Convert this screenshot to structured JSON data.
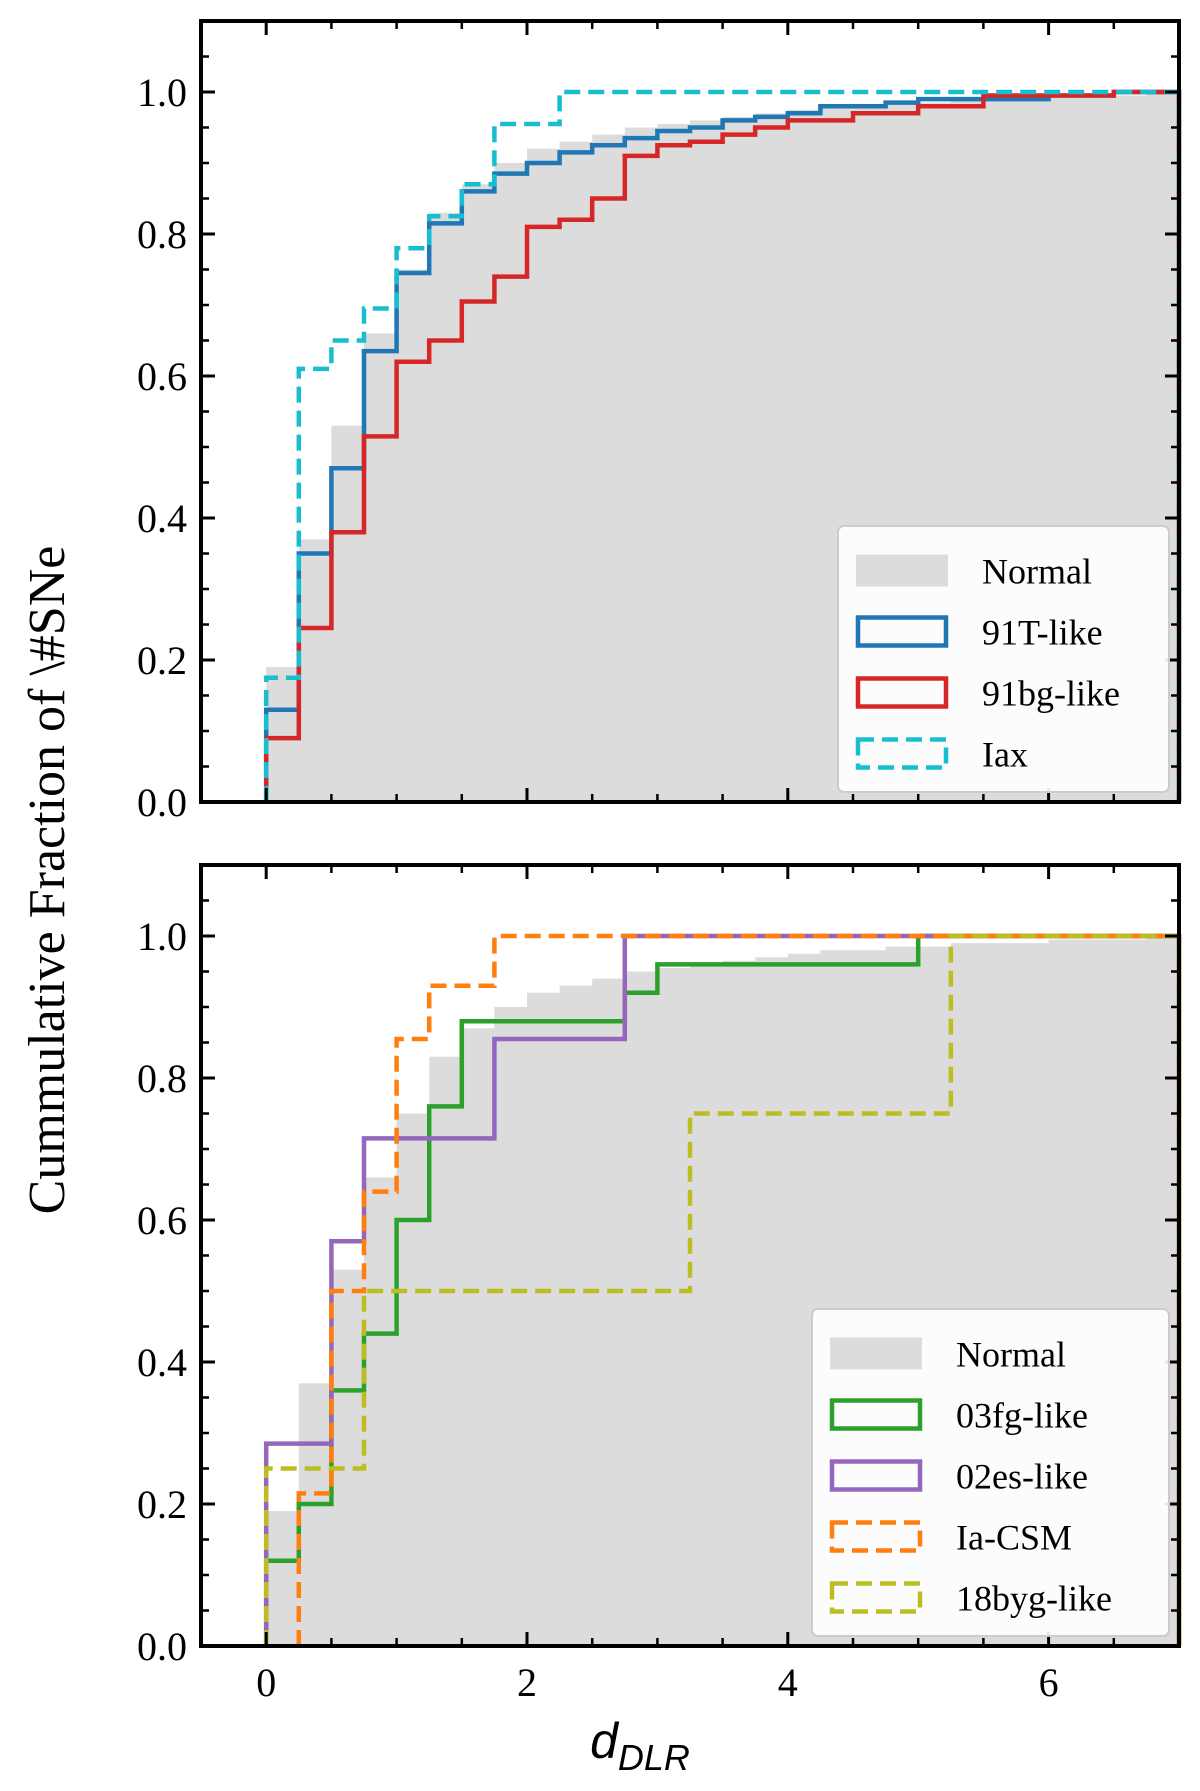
{
  "chart_data": [
    {
      "type": "histogram-step-cumulative",
      "panel": "top",
      "xlim": [
        -0.5,
        7
      ],
      "ylim": [
        0,
        1.1
      ],
      "xticks": [
        0,
        2,
        4,
        6
      ],
      "yticks": [
        0.0,
        0.2,
        0.4,
        0.6,
        0.8,
        1.0
      ],
      "ytick_labels": [
        "0.0",
        "0.2",
        "0.4",
        "0.6",
        "0.8",
        "1.0"
      ],
      "bin_edges": [
        0,
        0.25,
        0.5,
        0.75,
        1.0,
        1.25,
        1.5,
        1.75,
        2.0,
        2.25,
        2.5,
        2.75,
        3.0,
        3.25,
        3.5,
        3.75,
        4.0,
        4.25,
        4.5,
        4.75,
        5.0,
        5.25,
        5.5,
        5.75,
        6.0,
        6.25,
        6.5,
        6.75,
        7.0
      ],
      "normal": {
        "name": "Normal",
        "color": "#dcdcdc",
        "values": [
          0.19,
          0.37,
          0.53,
          0.66,
          0.75,
          0.83,
          0.87,
          0.9,
          0.92,
          0.93,
          0.94,
          0.95,
          0.955,
          0.96,
          0.965,
          0.97,
          0.975,
          0.98,
          0.98,
          0.985,
          0.985,
          0.99,
          0.99,
          0.99,
          0.995,
          0.995,
          0.995,
          1.0
        ]
      },
      "series": [
        {
          "name": "91T-like",
          "color": "#1f77b4",
          "dashed": false,
          "steps": [
            [
              0,
              0.13
            ],
            [
              0.25,
              0.35
            ],
            [
              0.5,
              0.47
            ],
            [
              0.75,
              0.635
            ],
            [
              1.0,
              0.745
            ],
            [
              1.25,
              0.815
            ],
            [
              1.5,
              0.86
            ],
            [
              1.75,
              0.885
            ],
            [
              2.0,
              0.9
            ],
            [
              2.25,
              0.915
            ],
            [
              2.5,
              0.925
            ],
            [
              2.75,
              0.935
            ],
            [
              3.0,
              0.945
            ],
            [
              3.25,
              0.95
            ],
            [
              3.5,
              0.96
            ],
            [
              3.75,
              0.965
            ],
            [
              4.0,
              0.97
            ],
            [
              4.25,
              0.98
            ],
            [
              4.75,
              0.985
            ],
            [
              5.0,
              0.99
            ],
            [
              6.0,
              0.995
            ],
            [
              6.5,
              1.0
            ]
          ]
        },
        {
          "name": "91bg-like",
          "color": "#d62728",
          "dashed": false,
          "steps": [
            [
              0,
              0.09
            ],
            [
              0.25,
              0.245
            ],
            [
              0.5,
              0.38
            ],
            [
              0.75,
              0.515
            ],
            [
              1.0,
              0.62
            ],
            [
              1.25,
              0.65
            ],
            [
              1.5,
              0.705
            ],
            [
              1.75,
              0.74
            ],
            [
              2.0,
              0.81
            ],
            [
              2.25,
              0.82
            ],
            [
              2.5,
              0.85
            ],
            [
              2.75,
              0.91
            ],
            [
              3.0,
              0.925
            ],
            [
              3.25,
              0.93
            ],
            [
              3.5,
              0.94
            ],
            [
              3.75,
              0.95
            ],
            [
              4.0,
              0.96
            ],
            [
              4.5,
              0.97
            ],
            [
              5.0,
              0.98
            ],
            [
              5.5,
              0.995
            ],
            [
              6.5,
              1.0
            ]
          ]
        },
        {
          "name": "Iax",
          "color": "#17becf",
          "dashed": true,
          "steps": [
            [
              0,
              0.175
            ],
            [
              0.25,
              0.61
            ],
            [
              0.5,
              0.65
            ],
            [
              0.75,
              0.695
            ],
            [
              1.0,
              0.78
            ],
            [
              1.25,
              0.825
            ],
            [
              1.5,
              0.87
            ],
            [
              1.75,
              0.955
            ],
            [
              2.25,
              1.0
            ]
          ]
        }
      ],
      "legend": {
        "position": "lower-right",
        "entries": [
          "Normal",
          "91T-like",
          "91bg-like",
          "Iax"
        ]
      }
    },
    {
      "type": "histogram-step-cumulative",
      "panel": "bottom",
      "xlim": [
        -0.5,
        7
      ],
      "ylim": [
        0,
        1.1
      ],
      "xticks": [
        0,
        2,
        4,
        6
      ],
      "xtick_labels": [
        "0",
        "2",
        "4",
        "6"
      ],
      "yticks": [
        0.0,
        0.2,
        0.4,
        0.6,
        0.8,
        1.0
      ],
      "ytick_labels": [
        "0.0",
        "0.2",
        "0.4",
        "0.6",
        "0.8",
        "1.0"
      ],
      "normal": {
        "name": "Normal",
        "color": "#dcdcdc",
        "values": [
          0.19,
          0.37,
          0.53,
          0.66,
          0.75,
          0.83,
          0.87,
          0.9,
          0.92,
          0.93,
          0.94,
          0.95,
          0.955,
          0.96,
          0.965,
          0.97,
          0.975,
          0.98,
          0.98,
          0.985,
          0.985,
          0.99,
          0.99,
          0.99,
          0.995,
          0.995,
          0.995,
          1.0
        ]
      },
      "series": [
        {
          "name": "03fg-like",
          "color": "#2ca02c",
          "dashed": false,
          "steps": [
            [
              0,
              0.12
            ],
            [
              0.25,
              0.2
            ],
            [
              0.5,
              0.36
            ],
            [
              0.75,
              0.44
            ],
            [
              1.0,
              0.6
            ],
            [
              1.25,
              0.76
            ],
            [
              1.5,
              0.88
            ],
            [
              2.75,
              0.92
            ],
            [
              3.0,
              0.96
            ],
            [
              5.0,
              1.0
            ]
          ]
        },
        {
          "name": "02es-like",
          "color": "#9467bd",
          "dashed": false,
          "steps": [
            [
              0,
              0.285
            ],
            [
              0.5,
              0.57
            ],
            [
              0.75,
              0.715
            ],
            [
              1.75,
              0.855
            ],
            [
              2.75,
              1.0
            ]
          ]
        },
        {
          "name": "Ia-CSM",
          "color": "#ff7f0e",
          "dashed": true,
          "steps": [
            [
              0.25,
              0.215
            ],
            [
              0.5,
              0.5
            ],
            [
              0.75,
              0.64
            ],
            [
              1.0,
              0.855
            ],
            [
              1.25,
              0.93
            ],
            [
              1.75,
              1.0
            ]
          ]
        },
        {
          "name": "18byg-like",
          "color": "#bcbd22",
          "dashed": true,
          "steps": [
            [
              0,
              0.25
            ],
            [
              0.75,
              0.5
            ],
            [
              3.25,
              0.75
            ],
            [
              5.25,
              1.0
            ]
          ]
        }
      ],
      "legend": {
        "position": "lower-right",
        "entries": [
          "Normal",
          "03fg-like",
          "02es-like",
          "Ia-CSM",
          "18byg-like"
        ]
      }
    }
  ],
  "labels": {
    "ylabel": "Cummulative Fraction of \\#SNe",
    "xlabel_main": "d",
    "xlabel_sub": "DLR"
  }
}
